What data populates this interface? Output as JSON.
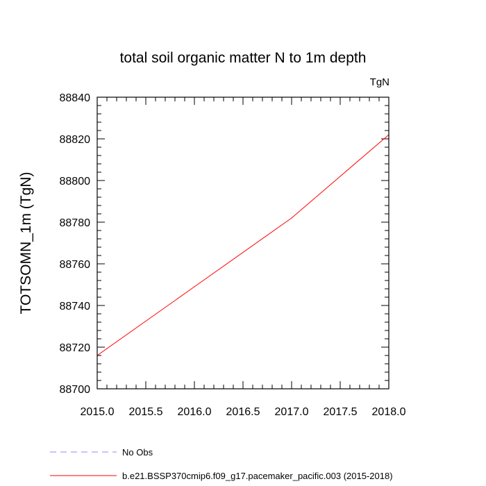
{
  "chart_data": {
    "type": "line",
    "title": "total soil organic matter N to 1m depth",
    "units_label": "TgN",
    "ylabel": "TOTSOMN_1m  (TgN)",
    "xlabel": "",
    "xlim": [
      2015.0,
      2018.0
    ],
    "ylim": [
      88700,
      88840
    ],
    "xticks": [
      2015.0,
      2015.5,
      2016.0,
      2016.5,
      2017.0,
      2017.5,
      2018.0
    ],
    "xtick_labels": [
      "2015.0",
      "2015.5",
      "2016.0",
      "2016.5",
      "2017.0",
      "2017.5",
      "2018.0"
    ],
    "yticks": [
      88700,
      88720,
      88740,
      88760,
      88780,
      88800,
      88820,
      88840
    ],
    "ytick_labels": [
      "88700",
      "88720",
      "88740",
      "88760",
      "88780",
      "88800",
      "88820",
      "88840"
    ],
    "x_minor_step": 0.1,
    "y_minor_step": 4,
    "grid": false,
    "series": [
      {
        "name": "b.e21.BSSP370cmip6.f09_g17.pacemaker_pacific.003 (2015-2018)",
        "color": "#ff0000",
        "dash": "solid",
        "x": [
          2015.0,
          2016.0,
          2017.0,
          2018.0
        ],
        "y": [
          88716,
          88749,
          88782,
          88822
        ]
      }
    ],
    "legend": {
      "placement": "bottom-left",
      "entries": [
        {
          "label": "No Obs",
          "color": "#8888ff",
          "dash": "dashed"
        },
        {
          "label": "b.e21.BSSP370cmip6.f09_g17.pacemaker_pacific.003 (2015-2018)",
          "color": "#ff0000",
          "dash": "solid"
        }
      ]
    }
  }
}
